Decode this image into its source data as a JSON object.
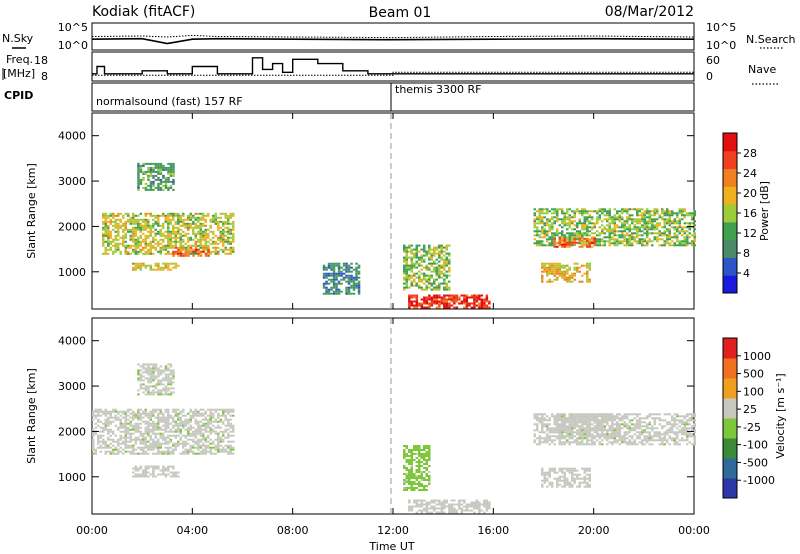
{
  "header": {
    "station": "Kodiak (fitACF)",
    "beam": "Beam 01",
    "date": "08/Mar/2012"
  },
  "nsky_panel": {
    "left_label": "N.Sky",
    "right_label": "N.Search",
    "left_ticks": [
      "10^5",
      "10^0"
    ],
    "right_ticks": [
      "10^5",
      "10^0"
    ]
  },
  "freq_panel": {
    "left_label_line1": "Freq.",
    "left_label_line2": "[MHz]",
    "right_label": "Nave",
    "left_ticks": [
      "18",
      "8"
    ],
    "right_ticks": [
      "60",
      "0"
    ]
  },
  "cpid_panel": {
    "label": "CPID",
    "modes": [
      "normalsound (fast) 157 RF",
      "themis 3300 RF"
    ]
  },
  "x_axis": {
    "label": "Time UT",
    "ticks": [
      "00:00",
      "04:00",
      "08:00",
      "12:00",
      "16:00",
      "20:00",
      "00:00"
    ]
  },
  "power_panel": {
    "ylabel": "Slant Range [km]",
    "yticks": [
      "1000",
      "2000",
      "3000",
      "4000"
    ],
    "colorbar_label": "Power [dB]",
    "colorbar_ticks": [
      "4",
      "8",
      "12",
      "16",
      "20",
      "24",
      "28"
    ]
  },
  "velocity_panel": {
    "ylabel": "Slant Range [km]",
    "yticks": [
      "1000",
      "2000",
      "3000",
      "4000"
    ],
    "colorbar_label": "Velocity [m s⁻¹]",
    "colorbar_ticks": [
      "1000",
      "500",
      "100",
      "25",
      "-25",
      "-100",
      "-500",
      "-1000"
    ]
  },
  "colors": {
    "power_scale": [
      "#1a1adc",
      "#2d55c8",
      "#4a8a6a",
      "#3fa050",
      "#9ccc3a",
      "#f0b020",
      "#f08020",
      "#f04020",
      "#e01010"
    ],
    "velocity_scale": [
      "#2c38a8",
      "#2e6a9a",
      "#3a8a3a",
      "#7cc83a",
      "#c8c8c0",
      "#f0a020",
      "#f07020",
      "#e02020"
    ],
    "ground_scatter": "#c8c8c0"
  },
  "chart_data": [
    {
      "type": "line",
      "title": "N.Sky / N.Search",
      "x": [
        0,
        2,
        3,
        4,
        5,
        8,
        12,
        16,
        20,
        24
      ],
      "series": [
        {
          "name": "N.Sky",
          "values": [
            2.0,
            2.1,
            1.2,
            2.0,
            2.1,
            2.0,
            1.9,
            2.0,
            2.1,
            2.0
          ]
        },
        {
          "name": "N.Search",
          "values": [
            2.5,
            2.6,
            2.4,
            2.7,
            2.5,
            2.4,
            2.3,
            2.5,
            2.6,
            2.4
          ]
        }
      ],
      "ylim": [
        0,
        5
      ]
    },
    {
      "type": "line",
      "title": "Freq. / Nave",
      "x": [
        0,
        0.2,
        0.5,
        1,
        2,
        3,
        4,
        5,
        6,
        6.4,
        6.8,
        7.2,
        7.6,
        8,
        9,
        10,
        11,
        12,
        16,
        20,
        24
      ],
      "series": [
        {
          "name": "Freq.",
          "values": [
            10.5,
            13,
            10.5,
            10.5,
            11.5,
            10.5,
            13,
            10.5,
            10.5,
            16,
            12,
            14,
            11,
            15.5,
            14,
            11.5,
            10.5,
            10.5,
            10.5,
            10.5,
            10.5
          ]
        },
        {
          "name": "Nave",
          "values": [
            10,
            10,
            10,
            10,
            10,
            10,
            10,
            10,
            10,
            10,
            10,
            10,
            10,
            10,
            10,
            10,
            10,
            11,
            11,
            11,
            11
          ]
        }
      ],
      "ylim": [
        8,
        18
      ]
    },
    {
      "type": "heatmap",
      "title": "Power",
      "xlabel": "Time UT",
      "ylabel": "Slant Range [km]",
      "xlim": [
        0,
        24
      ],
      "ylim": [
        180,
        4500
      ],
      "colorbar_range": [
        0,
        30
      ],
      "regions": [
        {
          "x": [
            0.4,
            5.6
          ],
          "y": [
            1400,
            2300
          ],
          "value": 16
        },
        {
          "x": [
            3.2,
            4.6
          ],
          "y": [
            1350,
            1550
          ],
          "value": 24
        },
        {
          "x": [
            1.6,
            3.4
          ],
          "y": [
            1050,
            1200
          ],
          "value": 18
        },
        {
          "x": [
            1.8,
            3.2
          ],
          "y": [
            2800,
            3400
          ],
          "value": 10
        },
        {
          "x": [
            12.6,
            15.8
          ],
          "y": [
            220,
            500
          ],
          "value": 28
        },
        {
          "x": [
            12.4,
            14.2
          ],
          "y": [
            600,
            1600
          ],
          "value": 14
        },
        {
          "x": [
            17.6,
            24.0
          ],
          "y": [
            1600,
            2400
          ],
          "value": 14
        },
        {
          "x": [
            18.4,
            20.0
          ],
          "y": [
            1550,
            1750
          ],
          "value": 24
        },
        {
          "x": [
            17.9,
            19.8
          ],
          "y": [
            800,
            1200
          ],
          "value": 18
        },
        {
          "x": [
            9.2,
            10.6
          ],
          "y": [
            500,
            1200
          ],
          "value": 8
        }
      ]
    },
    {
      "type": "heatmap",
      "title": "Velocity",
      "xlabel": "Time UT",
      "ylabel": "Slant Range [km]",
      "xlim": [
        0,
        24
      ],
      "ylim": [
        180,
        4500
      ],
      "colorbar_range": [
        -1000,
        1000
      ],
      "regions": [
        {
          "x": [
            0.0,
            5.6
          ],
          "y": [
            1500,
            2500
          ],
          "value": 0
        },
        {
          "x": [
            1.8,
            3.2
          ],
          "y": [
            2800,
            3500
          ],
          "value": 0
        },
        {
          "x": [
            1.6,
            3.4
          ],
          "y": [
            1000,
            1250
          ],
          "value": -150
        },
        {
          "x": [
            12.6,
            15.8
          ],
          "y": [
            220,
            500
          ],
          "value": -100
        },
        {
          "x": [
            12.4,
            13.4
          ],
          "y": [
            700,
            1700
          ],
          "value": 50
        },
        {
          "x": [
            17.6,
            24.0
          ],
          "y": [
            1700,
            2400
          ],
          "value": 0
        },
        {
          "x": [
            18.4,
            21.0
          ],
          "y": [
            1900,
            2400
          ],
          "value": -100
        },
        {
          "x": [
            17.9,
            19.8
          ],
          "y": [
            800,
            1200
          ],
          "value": -100
        }
      ]
    }
  ]
}
